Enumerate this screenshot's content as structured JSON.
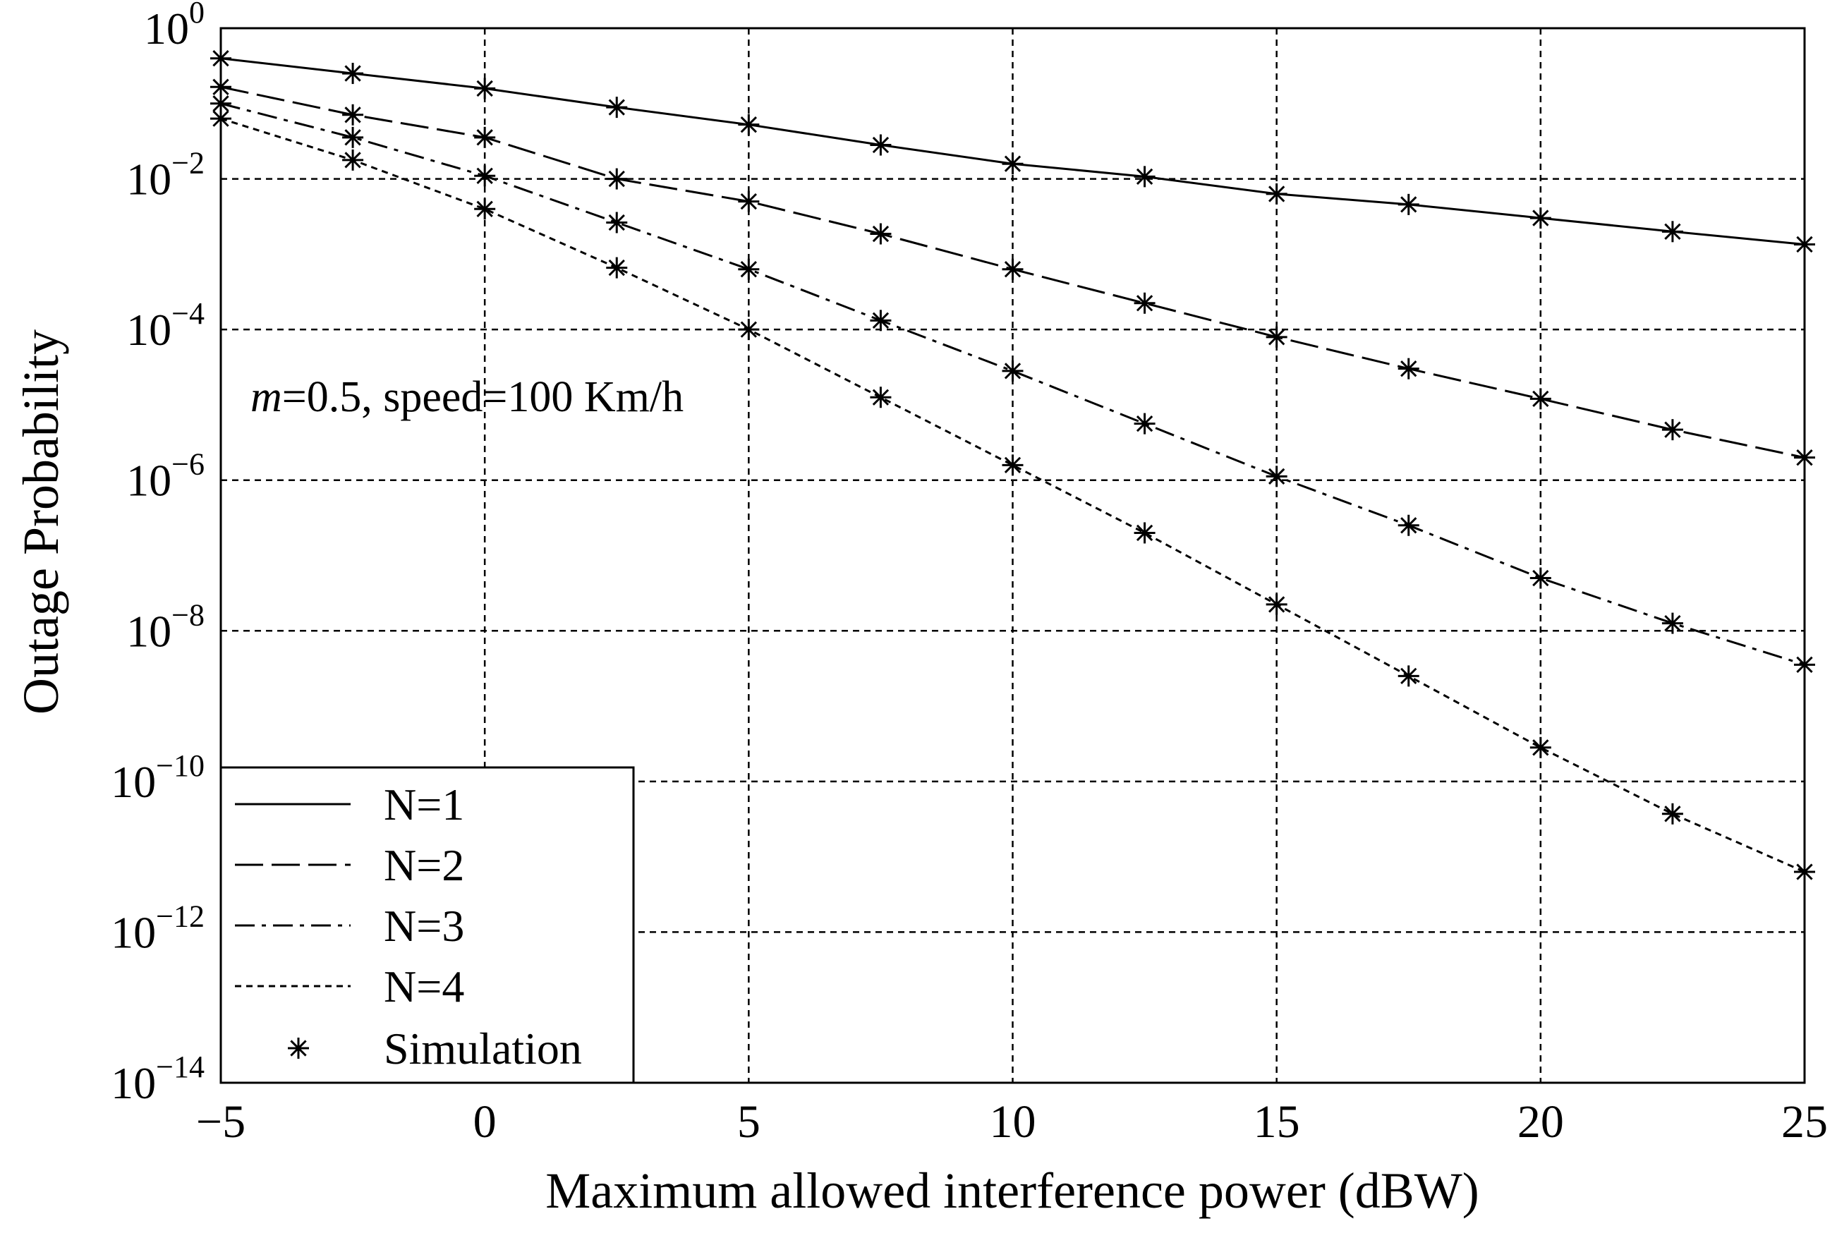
{
  "chart_data": {
    "type": "line",
    "title": "",
    "xlabel": "Maximum allowed interference power (dBW)",
    "ylabel": "Outage Probability",
    "xlim": [
      -5,
      25
    ],
    "ylim_log10": [
      -14,
      0
    ],
    "xticks": [
      -5,
      0,
      5,
      10,
      15,
      20,
      25
    ],
    "xtick_labels": [
      "−5",
      "0",
      "5",
      "10",
      "15",
      "20",
      "25"
    ],
    "yticks_exponents": [
      0,
      -2,
      -4,
      -6,
      -8,
      -10,
      -12,
      -14
    ],
    "ytick_base": "10",
    "ytick_exponent_labels": [
      "0",
      "−2",
      "−4",
      "−6",
      "−8",
      "−10",
      "−12",
      "−14"
    ],
    "grid": true,
    "annotation": {
      "italic_part": "m",
      "rest": "=0.5, speed=100 Km/h"
    },
    "legend": {
      "placement": "bottom-left",
      "entries": [
        {
          "label": "N=1",
          "style": "solid"
        },
        {
          "label": "N=2",
          "style": "long-dash"
        },
        {
          "label": "N=3",
          "style": "dash-dot"
        },
        {
          "label": "N=4",
          "style": "dotted"
        },
        {
          "label": "Simulation",
          "style": "marker"
        }
      ]
    },
    "series": [
      {
        "name": "N=1",
        "style": "solid",
        "x": [
          -5,
          -2.5,
          0,
          2.5,
          5,
          7.5,
          10,
          12.5,
          15,
          17.5,
          20,
          22.5,
          25
        ],
        "log10_y": [
          -0.4,
          -0.6,
          -0.8,
          -1.05,
          -1.28,
          -1.55,
          -1.8,
          -1.97,
          -2.2,
          -2.34,
          -2.52,
          -2.7,
          -2.87
        ]
      },
      {
        "name": "N=2",
        "style": "long-dash",
        "x": [
          -5,
          -2.5,
          0,
          2.5,
          5,
          7.5,
          10,
          12.5,
          15,
          17.5,
          20,
          22.5,
          25
        ],
        "log10_y": [
          -0.78,
          -1.15,
          -1.45,
          -2.0,
          -2.3,
          -2.73,
          -3.2,
          -3.65,
          -4.1,
          -4.52,
          -4.92,
          -5.33,
          -5.7
        ]
      },
      {
        "name": "N=3",
        "style": "dash-dot",
        "x": [
          -5,
          -2.5,
          0,
          2.5,
          5,
          7.5,
          10,
          12.5,
          15,
          17.5,
          20,
          22.5,
          25
        ],
        "log10_y": [
          -1.0,
          -1.45,
          -1.96,
          -2.58,
          -3.2,
          -3.88,
          -4.55,
          -5.25,
          -5.95,
          -6.6,
          -7.3,
          -7.9,
          -8.45
        ]
      },
      {
        "name": "N=4",
        "style": "dotted",
        "x": [
          -5,
          -2.5,
          0,
          2.5,
          5,
          7.5,
          10,
          12.5,
          15,
          17.5,
          20,
          22.5,
          25
        ],
        "log10_y": [
          -1.2,
          -1.75,
          -2.4,
          -3.18,
          -4.0,
          -4.9,
          -5.8,
          -6.7,
          -7.65,
          -8.6,
          -9.55,
          -10.43,
          -11.2
        ]
      }
    ],
    "simulation_marker": "*"
  }
}
